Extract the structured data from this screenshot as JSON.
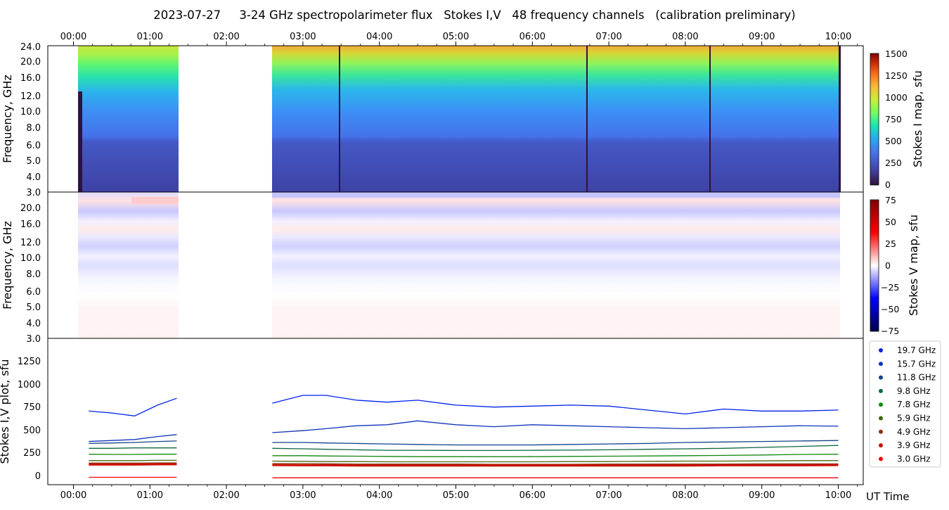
{
  "title": "2023-07-27     3-24 GHz spectropolarimeter flux   Stokes I,V   48 frequency channels   (calibration preliminary)",
  "time_ticks": [
    "00:00",
    "01:00",
    "02:00",
    "03:00",
    "04:00",
    "05:00",
    "06:00",
    "07:00",
    "08:00",
    "09:00",
    "10:00"
  ],
  "xlabel": "UT Time",
  "chart_data": [
    {
      "type": "heatmap",
      "ylabel": "Frequency, GHz",
      "colorbar_label": "Stokes I map, sfu",
      "colorbar_range": [
        0,
        1500
      ],
      "colorbar_ticks": [
        "1500",
        "1250",
        "1000",
        "750",
        "500",
        "250",
        "0"
      ],
      "y_ticks": [
        "24.0",
        "20.0",
        "16.0",
        "12.0",
        "10.0",
        "8.0",
        "6.0",
        "5.0",
        "4.0",
        "3.0"
      ],
      "y_range_ghz": [
        3.0,
        24.0
      ],
      "y_scale": "log",
      "colormap": "turbo",
      "observed_intervals_ut": [
        [
          "00:04",
          "01:23"
        ],
        [
          "02:38",
          "10:05"
        ]
      ],
      "calibration_gaps_ut": [
        "03:28",
        "06:42",
        "08:18",
        "10:02"
      ]
    },
    {
      "type": "heatmap",
      "ylabel": "Frequency, GHz",
      "colorbar_label": "Stokes V map, sfu",
      "colorbar_range": [
        -75,
        75
      ],
      "colorbar_ticks": [
        "75",
        "50",
        "25",
        "0",
        "−25",
        "−50",
        "−75"
      ],
      "y_ticks": [
        "20.0",
        "16.0",
        "12.0",
        "10.0",
        "8.0",
        "6.0",
        "5.0",
        "4.0",
        "3.0"
      ],
      "y_range_ghz": [
        3.0,
        24.0
      ],
      "y_scale": "log",
      "colormap": "seismic"
    },
    {
      "type": "line",
      "ylabel": "Stokes I,V plot, sfu",
      "ylim": [
        -70,
        1420
      ],
      "y_ticks": [
        "1250",
        "1000",
        "750",
        "500",
        "250",
        "0"
      ],
      "legend_position": "right",
      "x_hours": [
        0.2,
        0.5,
        0.8,
        1.1,
        1.35,
        2.6,
        3.0,
        3.3,
        3.7,
        4.1,
        4.5,
        5.0,
        5.5,
        6.0,
        6.5,
        7.0,
        7.5,
        8.0,
        8.5,
        9.0,
        9.5,
        10.0
      ],
      "series": [
        {
          "name": "19.7 GHz",
          "color": "#0022ee",
          "values": [
            680,
            660,
            630,
            740,
            810,
            760,
            840,
            840,
            790,
            770,
            790,
            740,
            720,
            730,
            740,
            730,
            690,
            650,
            700,
            680,
            680,
            690
          ]
        },
        {
          "name": "15.7 GHz",
          "color": "#1133bb",
          "values": [
            370,
            380,
            390,
            420,
            440,
            460,
            480,
            500,
            530,
            540,
            580,
            540,
            520,
            540,
            530,
            520,
            510,
            500,
            510,
            520,
            530,
            525
          ]
        },
        {
          "name": "11.8 GHz",
          "color": "#114488",
          "values": [
            350,
            355,
            360,
            370,
            375,
            360,
            360,
            355,
            350,
            345,
            340,
            335,
            335,
            335,
            340,
            345,
            350,
            360,
            365,
            370,
            375,
            380
          ]
        },
        {
          "name": "9.8 GHz",
          "color": "#116644",
          "values": [
            300,
            300,
            305,
            305,
            305,
            300,
            295,
            290,
            285,
            280,
            280,
            278,
            278,
            280,
            282,
            285,
            290,
            295,
            300,
            310,
            320,
            330
          ]
        },
        {
          "name": "7.8 GHz",
          "color": "#118811",
          "values": [
            240,
            238,
            238,
            240,
            240,
            225,
            225,
            222,
            220,
            218,
            215,
            215,
            215,
            215,
            218,
            220,
            222,
            225,
            228,
            232,
            238,
            240
          ]
        },
        {
          "name": "5.9 GHz",
          "color": "#446611",
          "values": [
            175,
            175,
            175,
            178,
            178,
            170,
            168,
            165,
            165,
            163,
            163,
            163,
            163,
            163,
            165,
            165,
            168,
            170,
            170,
            172,
            175,
            175
          ]
        },
        {
          "name": "4.9 GHz",
          "color": "#883311",
          "values": [
            150,
            150,
            150,
            152,
            152,
            145,
            145,
            143,
            140,
            140,
            140,
            140,
            138,
            138,
            138,
            140,
            140,
            140,
            140,
            142,
            142,
            142
          ]
        },
        {
          "name": "3.9 GHz",
          "color": "#cc1100",
          "values": [
            135,
            135,
            135,
            138,
            138,
            130,
            128,
            128,
            125,
            125,
            125,
            125,
            125,
            125,
            125,
            125,
            125,
            125,
            128,
            128,
            128,
            130
          ]
        },
        {
          "name": "3.0 GHz",
          "color": "#ee0000",
          "values": [
            5,
            5,
            5,
            5,
            5,
            0,
            0,
            0,
            0,
            0,
            0,
            0,
            0,
            0,
            0,
            0,
            0,
            0,
            0,
            0,
            0,
            0
          ]
        }
      ]
    }
  ]
}
